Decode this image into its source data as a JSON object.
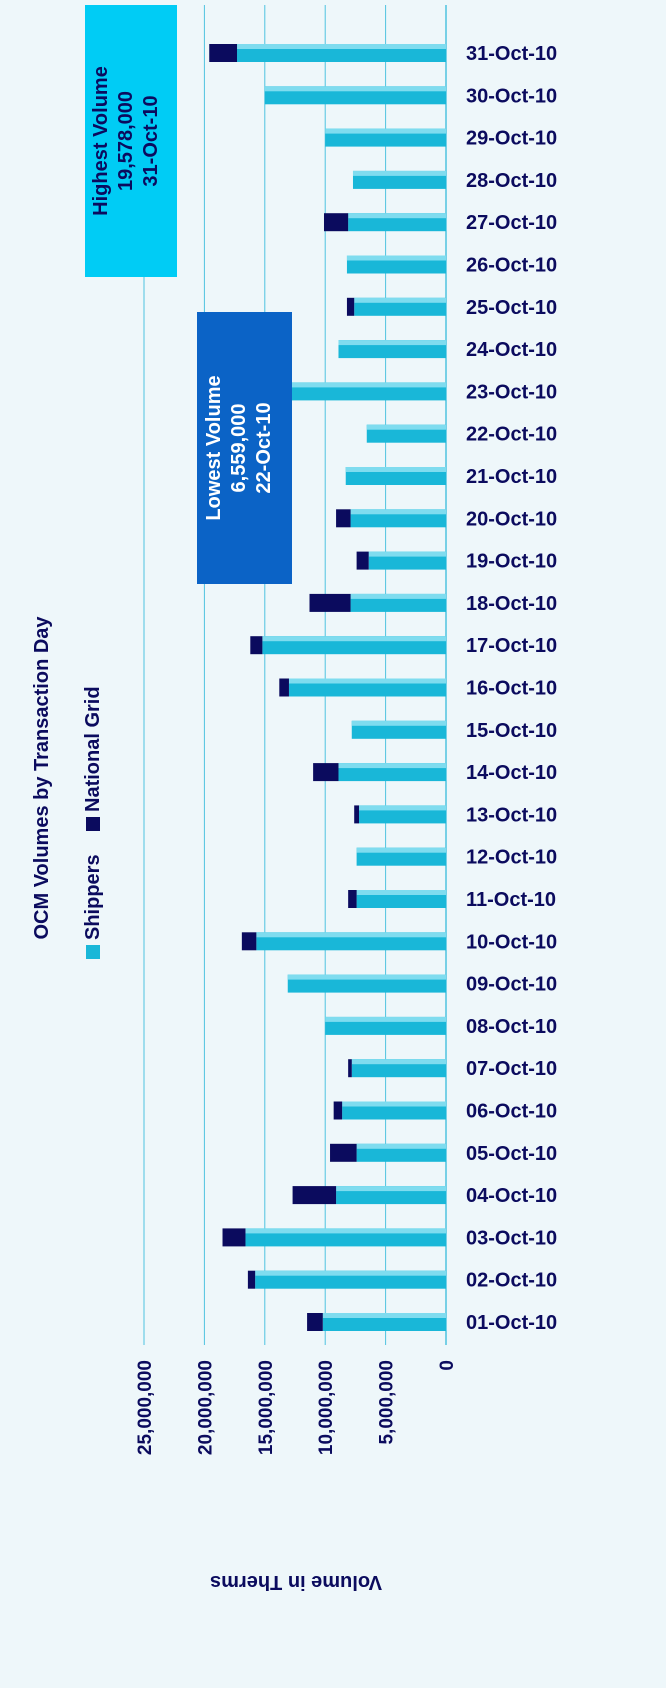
{
  "chart_data": {
    "type": "bar",
    "stacked": true,
    "orientation": "rotated-90-ccw",
    "title": "OCM Volumes by Transaction Day",
    "ylabel": "Volume in Therms",
    "xlabel": "",
    "ylim": [
      0,
      25000000
    ],
    "yticks": [
      "0",
      "5,000,000",
      "10,000,000",
      "15,000,000",
      "20,000,000",
      "25,000,000"
    ],
    "ytick_values": [
      0,
      5000000,
      10000000,
      15000000,
      20000000,
      25000000
    ],
    "grid": true,
    "legend_position": "top",
    "categories": [
      "01-Oct-10",
      "02-Oct-10",
      "03-Oct-10",
      "04-Oct-10",
      "05-Oct-10",
      "06-Oct-10",
      "07-Oct-10",
      "08-Oct-10",
      "09-Oct-10",
      "10-Oct-10",
      "11-Oct-10",
      "12-Oct-10",
      "13-Oct-10",
      "14-Oct-10",
      "15-Oct-10",
      "16-Oct-10",
      "17-Oct-10",
      "18-Oct-10",
      "19-Oct-10",
      "20-Oct-10",
      "21-Oct-10",
      "22-Oct-10",
      "23-Oct-10",
      "24-Oct-10",
      "25-Oct-10",
      "26-Oct-10",
      "27-Oct-10",
      "28-Oct-10",
      "29-Oct-10",
      "30-Oct-10",
      "31-Oct-10"
    ],
    "series": [
      {
        "name": "Shippers",
        "color": "#19b7d8",
        "values": [
          10200000,
          15800000,
          16600000,
          9100000,
          7400000,
          8600000,
          7800000,
          10000000,
          13100000,
          15700000,
          7400000,
          7400000,
          7200000,
          8900000,
          7800000,
          13000000,
          15200000,
          7900000,
          6400000,
          7900000,
          8300000,
          6559000,
          12900000,
          8900000,
          7600000,
          8200000,
          8100000,
          7700000,
          10000000,
          15000000,
          17300000
        ]
      },
      {
        "name": "National Grid",
        "color": "#0b0b5e",
        "values": [
          1300000,
          600000,
          1900000,
          3600000,
          2200000,
          700000,
          300000,
          0,
          0,
          1200000,
          700000,
          0,
          400000,
          2100000,
          0,
          800000,
          1000000,
          3400000,
          1000000,
          1200000,
          0,
          0,
          0,
          0,
          600000,
          0,
          2000000,
          0,
          0,
          0,
          2300000
        ]
      }
    ],
    "annotations": [
      {
        "id": "highest",
        "lines": [
          "Highest Volume",
          "19,578,000",
          "31-Oct-10"
        ],
        "color": "#00ccf5"
      },
      {
        "id": "lowest",
        "lines": [
          "Lowest Volume",
          "6,559,000",
          "22-Oct-10"
        ],
        "color": "#0b63c6"
      }
    ]
  },
  "colors": {
    "background": "#eef7fa",
    "gridline": "#4fc3e0",
    "text": "#0b0b5e"
  }
}
